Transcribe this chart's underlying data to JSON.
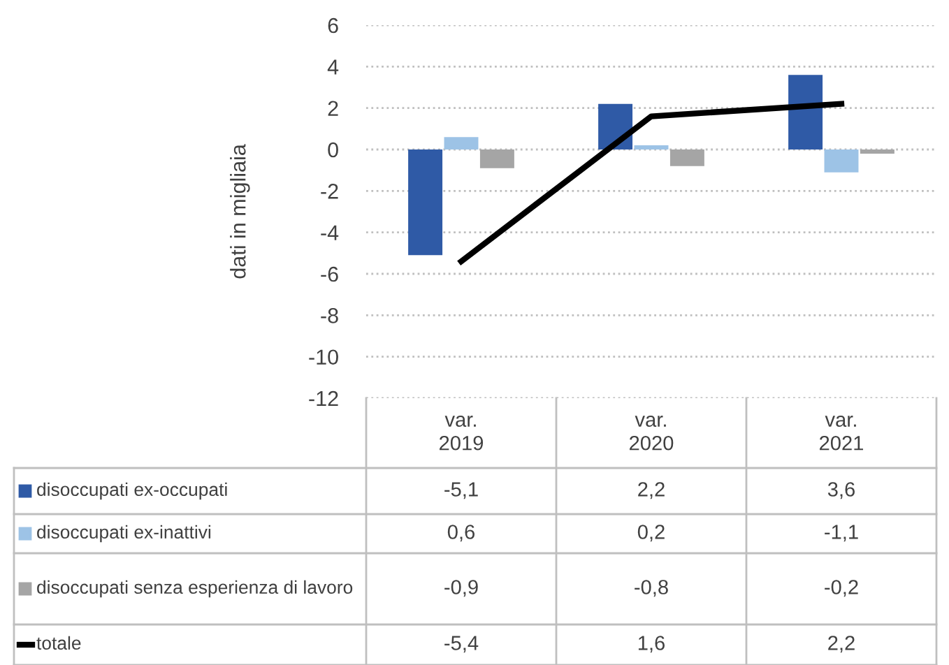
{
  "chart_data": {
    "type": "bar",
    "ylabel": "dati in migliaia",
    "categories": [
      "var. 2019",
      "var. 2020",
      "var. 2021"
    ],
    "series": [
      {
        "name": "disoccupati ex-occupati",
        "color": "#2f5aa6",
        "values": [
          -5.1,
          2.2,
          3.6
        ],
        "value_labels": [
          "-5,1",
          "2,2",
          "3,6"
        ]
      },
      {
        "name": "disoccupati ex-inattivi",
        "color": "#9dc3e6",
        "values": [
          0.6,
          0.2,
          -1.1
        ],
        "value_labels": [
          "0,6",
          "0,2",
          "-1,1"
        ]
      },
      {
        "name": "disoccupati senza esperienza di lavoro",
        "color": "#a5a5a5",
        "values": [
          -0.9,
          -0.8,
          -0.2
        ],
        "value_labels": [
          "-0,9",
          "-0,8",
          "-0,2"
        ]
      },
      {
        "name": "totale",
        "type": "line",
        "color": "#000000",
        "values": [
          -5.4,
          1.6,
          2.2
        ],
        "value_labels": [
          "-5,4",
          "1,6",
          "2,2"
        ]
      }
    ],
    "ylim": [
      -12,
      6
    ],
    "yticks": [
      -12,
      -10,
      -8,
      -6,
      -4,
      -2,
      0,
      2,
      4,
      6
    ],
    "grid": "y",
    "legend": "bottom left"
  }
}
